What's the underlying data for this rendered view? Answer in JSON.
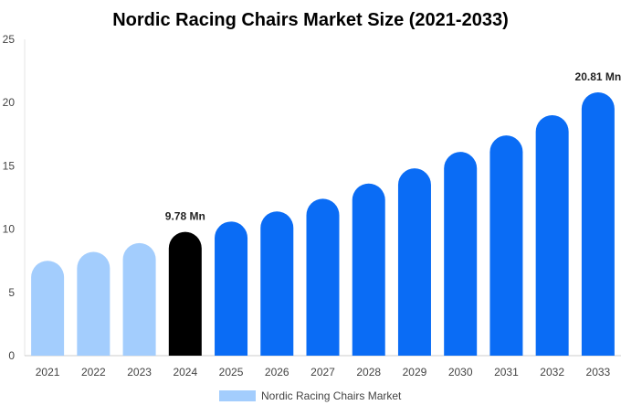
{
  "chart_data": {
    "type": "bar",
    "title": "Nordic Racing Chairs Market Size (2021-2033)",
    "xlabel": "",
    "ylabel": "",
    "categories": [
      "2021",
      "2022",
      "2023",
      "2024",
      "2025",
      "2026",
      "2027",
      "2028",
      "2029",
      "2030",
      "2031",
      "2032",
      "2033"
    ],
    "series": [
      {
        "name": "Nordic Racing Chairs Market",
        "values": [
          7.5,
          8.2,
          8.9,
          9.78,
          10.6,
          11.4,
          12.4,
          13.6,
          14.8,
          16.1,
          17.4,
          19.0,
          20.81
        ]
      }
    ],
    "ylim": [
      0,
      25
    ],
    "yticks": [
      "0",
      "5",
      "10",
      "15",
      "20",
      "25"
    ],
    "data_labels": [
      {
        "category": "2024",
        "text": "9.78 Mn"
      },
      {
        "category": "2033",
        "text": "20.81 Mn"
      }
    ],
    "bar_colors": {
      "historical": "#a3cdfd",
      "base_year": "#000000",
      "forecast": "#0a6cf5"
    },
    "grid": false,
    "legend_position": "bottom"
  },
  "legend": {
    "label": "Nordic Racing Chairs Market",
    "color": "#a3cdfd"
  }
}
